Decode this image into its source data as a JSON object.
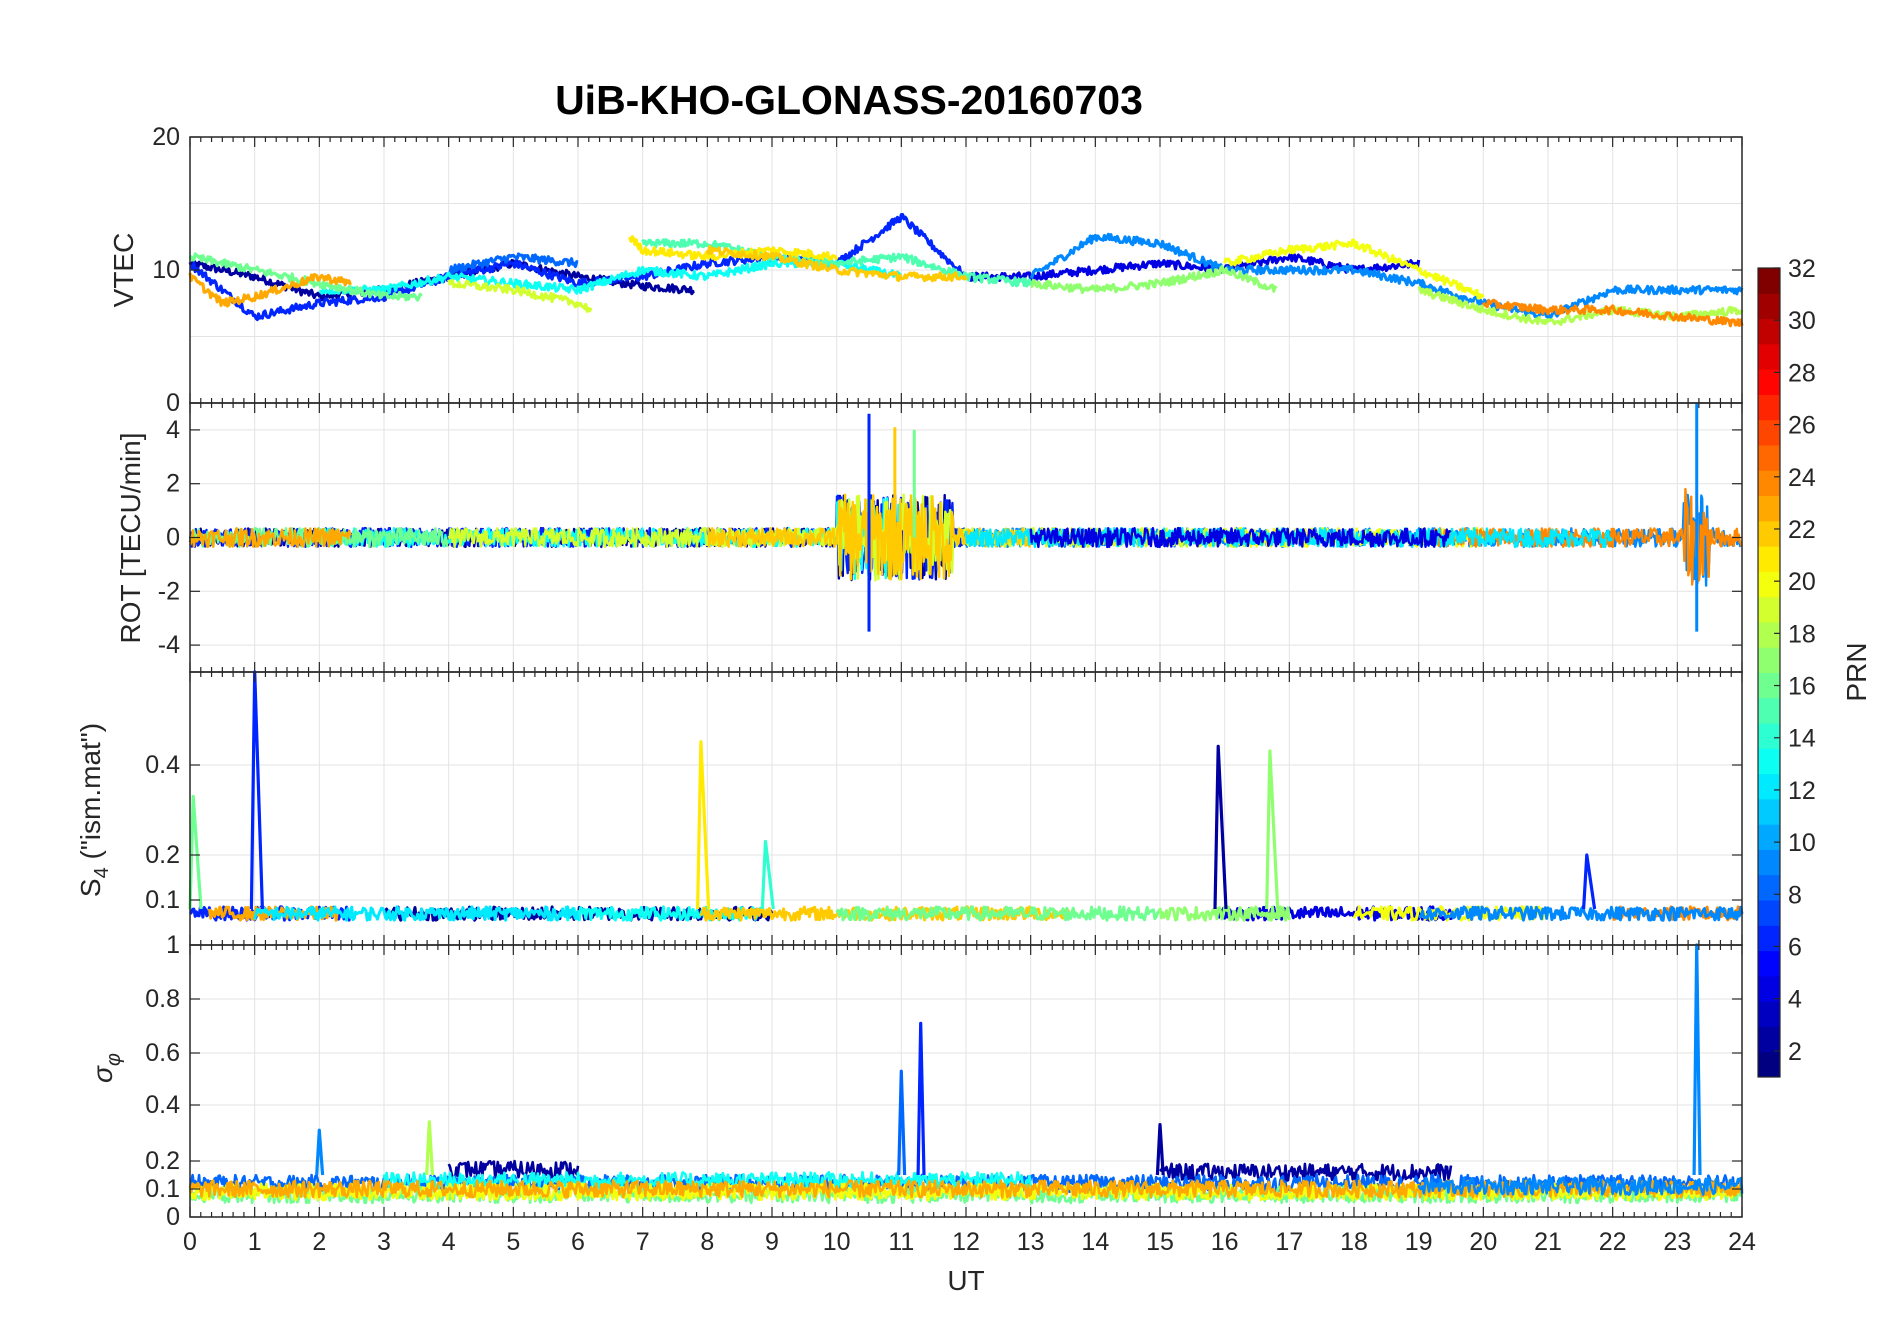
{
  "chart_data": [
    {
      "type": "line",
      "title": "UiB-KHO-GLONASS-20160703",
      "ylabel": "VTEC",
      "xlabel": "",
      "xlim": [
        0,
        24
      ],
      "ylim": [
        0,
        20
      ],
      "yticks": [
        0,
        10,
        20
      ],
      "grid": true,
      "series": [
        {
          "prn": 2,
          "x": [
            0,
            1,
            2,
            3,
            4,
            5,
            6,
            7,
            7.8
          ],
          "values": [
            10.5,
            9.5,
            8,
            8.5,
            9.5,
            10.5,
            9.5,
            8.8,
            8.5
          ]
        },
        {
          "prn": 4,
          "x": [
            12,
            13,
            14,
            15,
            16,
            17,
            18,
            19
          ],
          "values": [
            9.5,
            9.5,
            10,
            10.5,
            10,
            11,
            10,
            10.5
          ]
        },
        {
          "prn": 6,
          "x": [
            0,
            1,
            2,
            3,
            4,
            5,
            6,
            7,
            8,
            9,
            10,
            11,
            12
          ],
          "values": [
            10.5,
            6.5,
            7.5,
            8,
            9.5,
            10.5,
            9,
            9.5,
            10.5,
            11,
            10.5,
            14,
            9.5
          ]
        },
        {
          "prn": 8,
          "x": [
            4,
            5,
            6
          ],
          "values": [
            10,
            11,
            10.5
          ]
        },
        {
          "prn": 9,
          "x": [
            13,
            14,
            15,
            16,
            17,
            18,
            19,
            20,
            21,
            22,
            23,
            24
          ],
          "values": [
            9.5,
            12.5,
            12,
            10,
            10,
            10,
            9,
            7.5,
            6.5,
            8.5,
            8.5,
            8.5
          ]
        },
        {
          "prn": 13,
          "x": [
            2,
            3,
            4,
            5,
            6,
            7,
            8,
            9,
            10,
            11
          ],
          "values": [
            8.5,
            8.5,
            9.5,
            9,
            8.5,
            10,
            9.5,
            10.5,
            10.5,
            9.5
          ]
        },
        {
          "prn": 15,
          "x": [
            7,
            8,
            9,
            10,
            11,
            12,
            13
          ],
          "values": [
            12,
            12,
            11,
            10.5,
            11,
            9.5,
            9
          ]
        },
        {
          "prn": 16,
          "x": [
            0,
            1,
            2,
            3,
            3.6
          ],
          "values": [
            11,
            10,
            9,
            8,
            8
          ]
        },
        {
          "prn": 17,
          "x": [
            13,
            14,
            15,
            16,
            16.8
          ],
          "values": [
            9,
            8.5,
            9,
            10,
            8.5
          ]
        },
        {
          "prn": 18,
          "x": [
            19,
            20,
            21,
            22,
            23,
            24
          ],
          "values": [
            8.5,
            7,
            6,
            7,
            6.5,
            7
          ]
        },
        {
          "prn": 19,
          "x": [
            4,
            5,
            6,
            6.2
          ],
          "values": [
            9,
            8.5,
            7.5,
            7
          ]
        },
        {
          "prn": 20,
          "x": [
            16,
            17,
            18,
            19,
            20
          ],
          "values": [
            10.5,
            11.5,
            12,
            10,
            8
          ]
        },
        {
          "prn": 21,
          "x": [
            6.8,
            7,
            8,
            9,
            10
          ],
          "values": [
            12.5,
            11.5,
            11,
            11.5,
            11
          ]
        },
        {
          "prn": 22,
          "x": [
            8,
            9,
            10,
            11,
            12
          ],
          "values": [
            11.5,
            11,
            10,
            9.5,
            9.5
          ]
        },
        {
          "prn": 23,
          "x": [
            0,
            0.5,
            1,
            2,
            2.5
          ],
          "values": [
            9.5,
            7.5,
            8,
            9.5,
            9
          ]
        },
        {
          "prn": 24,
          "x": [
            20,
            21,
            22,
            23,
            24
          ],
          "values": [
            7.5,
            7,
            7,
            6.5,
            6
          ]
        }
      ]
    },
    {
      "type": "line",
      "title": "",
      "ylabel": "ROT [TECU/min]",
      "xlabel": "",
      "xlim": [
        0,
        24
      ],
      "ylim": [
        -5,
        5
      ],
      "yticks": [
        -4,
        -2,
        0,
        2,
        4
      ],
      "grid": true,
      "note_peaks": [
        {
          "x": 10.5,
          "value": 4.6
        },
        {
          "x": 10.5,
          "value": -3.5
        },
        {
          "x": 10.9,
          "value": 4.1
        },
        {
          "x": 11.2,
          "value": 4.0
        },
        {
          "x": 23.3,
          "value": 5.0
        },
        {
          "x": 23.3,
          "value": -3.5
        }
      ]
    },
    {
      "type": "line",
      "title": "",
      "ylabel": "S4 (\"ism.mat\")",
      "xlabel": "",
      "xlim": [
        0,
        24
      ],
      "ylim": [
        0,
        0.6
      ],
      "yticks": [
        0.1,
        0.2,
        0.4
      ],
      "grid": true,
      "note_peaks": [
        {
          "x": 1.0,
          "value": 0.6
        },
        {
          "x": 7.9,
          "value": 0.45
        },
        {
          "x": 8.9,
          "value": 0.23
        },
        {
          "x": 15.9,
          "value": 0.44
        },
        {
          "x": 16.7,
          "value": 0.43
        },
        {
          "x": 0.05,
          "value": 0.33
        },
        {
          "x": 21.6,
          "value": 0.2
        }
      ]
    },
    {
      "type": "line",
      "title": "",
      "ylabel": "σφ",
      "xlabel": "UT",
      "xlim": [
        0,
        24
      ],
      "ylim": [
        0,
        1
      ],
      "yticks": [
        0,
        0.1,
        0.2,
        0.4,
        0.6,
        0.8,
        1
      ],
      "xticks": [
        0,
        1,
        2,
        3,
        4,
        5,
        6,
        7,
        8,
        9,
        10,
        11,
        12,
        13,
        14,
        15,
        16,
        17,
        18,
        19,
        20,
        21,
        22,
        23,
        24
      ],
      "grid": true,
      "note_peaks": [
        {
          "x": 11.0,
          "value": 0.53
        },
        {
          "x": 11.3,
          "value": 0.71
        },
        {
          "x": 23.3,
          "value": 1.0
        },
        {
          "x": 3.7,
          "value": 0.34
        },
        {
          "x": 15.0,
          "value": 0.33
        },
        {
          "x": 2.0,
          "value": 0.31
        }
      ]
    }
  ],
  "colorbar": {
    "label": "PRN",
    "range": [
      1,
      32
    ],
    "ticks": [
      2,
      4,
      6,
      8,
      10,
      12,
      14,
      16,
      18,
      20,
      22,
      24,
      26,
      28,
      30,
      32
    ],
    "colormap": "jet"
  },
  "colors": {
    "axis": "#262626",
    "grid": "#e3e3e3"
  }
}
